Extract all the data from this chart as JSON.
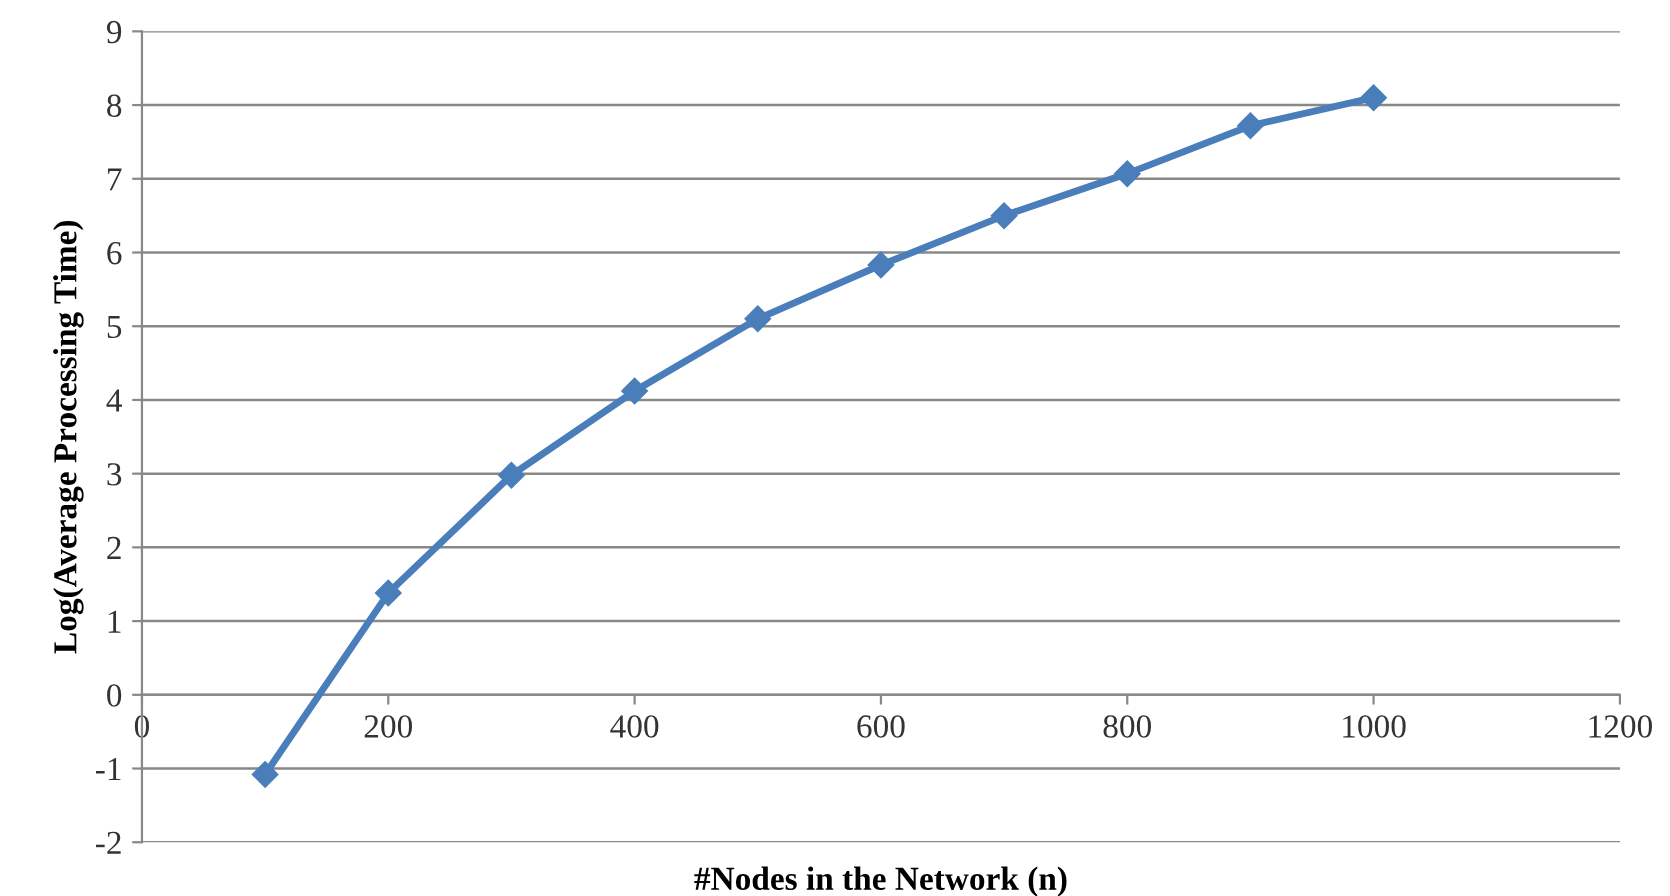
{
  "chart_data": {
    "type": "line",
    "xlabel": "#Nodes in the Network (n)",
    "ylabel": "Log(Average Processing Time)",
    "x": [
      100,
      200,
      300,
      400,
      500,
      600,
      700,
      800,
      900,
      1000
    ],
    "series": [
      {
        "color": "#4a7ebb",
        "values": [
          -1.08,
          1.38,
          2.98,
          4.12,
          5.1,
          5.83,
          6.5,
          7.07,
          7.72,
          8.1
        ]
      }
    ],
    "xlim": [
      0,
      1200
    ],
    "xticks": [
      0,
      200,
      400,
      600,
      800,
      1000,
      1200
    ],
    "ylim": [
      -2,
      9
    ],
    "yticks": [
      -2,
      -1,
      0,
      1,
      2,
      3,
      4,
      5,
      6,
      7,
      8,
      9
    ],
    "grid": "y",
    "marker": "diamond",
    "line_style": "solid"
  }
}
